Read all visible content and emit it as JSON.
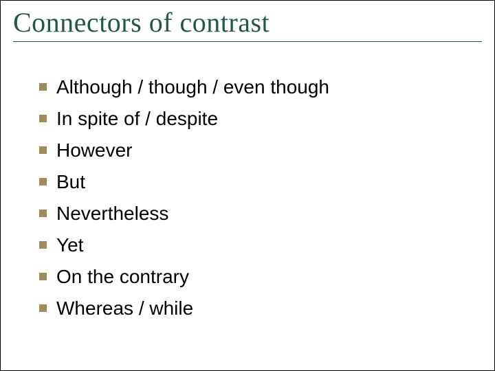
{
  "slide": {
    "title": "Connectors of contrast",
    "title_color": "#1e5b3c",
    "title_fontsize": 40,
    "rule_color": "#1e5b3c",
    "bullet_color": "#a08c58",
    "bullet_size": 11,
    "body_font": "Arial",
    "body_fontsize": 28,
    "body_color": "#000000",
    "background_color": "#ffffff",
    "items": [
      {
        "text": "Although / though / even though"
      },
      {
        "text": "In spite of / despite"
      },
      {
        "text": "However"
      },
      {
        "text": "But"
      },
      {
        "text": "Nevertheless"
      },
      {
        "text": "Yet"
      },
      {
        "text": "On the contrary"
      },
      {
        "text": "Whereas / while"
      }
    ]
  }
}
